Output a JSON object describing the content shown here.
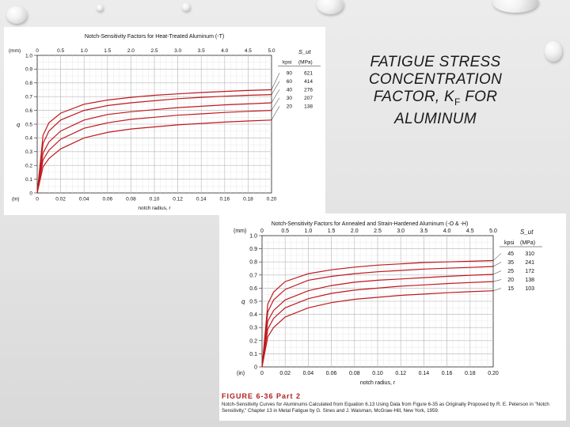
{
  "slide": {
    "title_main": "FATIGUE STRESS CONCENTRATION FACTOR, K",
    "title_sub": "F",
    "title_tail": " FOR ALUMINUM"
  },
  "chart_data": [
    {
      "type": "line",
      "title": "Notch-Sensitivity Factors for Heat-Treated Aluminum (-T)",
      "xlabel": "notch radius, r",
      "ylabel": "q",
      "x_unit_label": "(in)",
      "x2_unit_label": "(mm)",
      "x_ticks": [
        "0",
        "0.02",
        "0.04",
        "0.06",
        "0.08",
        "0.10",
        "0.12",
        "0.14",
        "0.16",
        "0.18",
        "0.20"
      ],
      "x2_ticks": [
        "0",
        "0.5",
        "1.0",
        "1.5",
        "2.0",
        "2.5",
        "3.0",
        "3.5",
        "4.0",
        "4.5",
        "5.0"
      ],
      "y_ticks": [
        "0",
        "0.1",
        "0.2",
        "0.3",
        "0.4",
        "0.5",
        "0.6",
        "0.7",
        "0.8",
        "0.9",
        "1.0"
      ],
      "xlim": [
        0,
        0.2
      ],
      "ylim": [
        0,
        1.0
      ],
      "grid": true,
      "legend_title": "S_ut",
      "legend_header": [
        "kpsi",
        "(MPa)"
      ],
      "series": [
        {
          "name": "90",
          "mpa": "621",
          "x": [
            0,
            0.005,
            0.01,
            0.02,
            0.04,
            0.06,
            0.08,
            0.1,
            0.12,
            0.14,
            0.16,
            0.18,
            0.2
          ],
          "values": [
            0,
            0.42,
            0.51,
            0.58,
            0.645,
            0.675,
            0.695,
            0.71,
            0.72,
            0.73,
            0.738,
            0.745,
            0.75
          ]
        },
        {
          "name": "60",
          "mpa": "414",
          "x": [
            0,
            0.005,
            0.01,
            0.02,
            0.04,
            0.06,
            0.08,
            0.1,
            0.12,
            0.14,
            0.16,
            0.18,
            0.2
          ],
          "values": [
            0,
            0.36,
            0.45,
            0.53,
            0.6,
            0.635,
            0.655,
            0.67,
            0.685,
            0.695,
            0.703,
            0.71,
            0.715
          ]
        },
        {
          "name": "40",
          "mpa": "276",
          "x": [
            0,
            0.005,
            0.01,
            0.02,
            0.04,
            0.06,
            0.08,
            0.1,
            0.12,
            0.14,
            0.16,
            0.18,
            0.2
          ],
          "values": [
            0,
            0.29,
            0.37,
            0.45,
            0.53,
            0.57,
            0.59,
            0.605,
            0.62,
            0.63,
            0.64,
            0.647,
            0.655
          ]
        },
        {
          "name": "30",
          "mpa": "207",
          "x": [
            0,
            0.005,
            0.01,
            0.02,
            0.04,
            0.06,
            0.08,
            0.1,
            0.12,
            0.14,
            0.16,
            0.18,
            0.2
          ],
          "values": [
            0,
            0.24,
            0.31,
            0.39,
            0.47,
            0.51,
            0.535,
            0.55,
            0.565,
            0.575,
            0.585,
            0.593,
            0.6
          ]
        },
        {
          "name": "20",
          "mpa": "138",
          "x": [
            0,
            0.005,
            0.01,
            0.02,
            0.04,
            0.06,
            0.08,
            0.1,
            0.12,
            0.14,
            0.16,
            0.18,
            0.2
          ],
          "values": [
            0,
            0.19,
            0.25,
            0.32,
            0.4,
            0.44,
            0.465,
            0.48,
            0.495,
            0.505,
            0.515,
            0.523,
            0.53
          ]
        }
      ]
    },
    {
      "type": "line",
      "title": "Notch-Sensitivity Factors for Annealed and Strain-Hardened Aluminum (-O & -H)",
      "xlabel": "notch radius, r",
      "ylabel": "q",
      "x_unit_label": "(in)",
      "x2_unit_label": "(mm)",
      "x_ticks": [
        "0",
        "0.02",
        "0.04",
        "0.06",
        "0.08",
        "0.10",
        "0.12",
        "0.14",
        "0.16",
        "0.18",
        "0.20"
      ],
      "x2_ticks": [
        "0",
        "0.5",
        "1.0",
        "1.5",
        "2.0",
        "2.5",
        "3.0",
        "3.5",
        "4.0",
        "4.5",
        "5.0"
      ],
      "y_ticks": [
        "0",
        "0.1",
        "0.2",
        "0.3",
        "0.4",
        "0.5",
        "0.6",
        "0.7",
        "0.8",
        "0.9",
        "1.0"
      ],
      "xlim": [
        0,
        0.2
      ],
      "ylim": [
        0,
        1.0
      ],
      "grid": true,
      "legend_title": "S_ut",
      "legend_header": [
        "kpsi",
        "(MPa)"
      ],
      "series": [
        {
          "name": "45",
          "mpa": "310",
          "x": [
            0,
            0.005,
            0.01,
            0.02,
            0.04,
            0.06,
            0.08,
            0.1,
            0.12,
            0.14,
            0.16,
            0.18,
            0.2
          ],
          "values": [
            0,
            0.48,
            0.57,
            0.65,
            0.71,
            0.74,
            0.76,
            0.775,
            0.785,
            0.795,
            0.8,
            0.805,
            0.81
          ]
        },
        {
          "name": "35",
          "mpa": "241",
          "x": [
            0,
            0.005,
            0.01,
            0.02,
            0.04,
            0.06,
            0.08,
            0.1,
            0.12,
            0.14,
            0.16,
            0.18,
            0.2
          ],
          "values": [
            0,
            0.42,
            0.51,
            0.59,
            0.66,
            0.69,
            0.71,
            0.725,
            0.735,
            0.745,
            0.752,
            0.758,
            0.765
          ]
        },
        {
          "name": "25",
          "mpa": "172",
          "x": [
            0,
            0.005,
            0.01,
            0.02,
            0.04,
            0.06,
            0.08,
            0.1,
            0.12,
            0.14,
            0.16,
            0.18,
            0.2
          ],
          "values": [
            0,
            0.35,
            0.43,
            0.51,
            0.58,
            0.62,
            0.645,
            0.66,
            0.67,
            0.68,
            0.69,
            0.698,
            0.705
          ]
        },
        {
          "name": "20",
          "mpa": "138",
          "x": [
            0,
            0.005,
            0.01,
            0.02,
            0.04,
            0.06,
            0.08,
            0.1,
            0.12,
            0.14,
            0.16,
            0.18,
            0.2
          ],
          "values": [
            0,
            0.29,
            0.37,
            0.45,
            0.52,
            0.56,
            0.585,
            0.6,
            0.615,
            0.625,
            0.635,
            0.643,
            0.65
          ]
        },
        {
          "name": "15",
          "mpa": "103",
          "x": [
            0,
            0.005,
            0.01,
            0.02,
            0.04,
            0.06,
            0.08,
            0.1,
            0.12,
            0.14,
            0.16,
            0.18,
            0.2
          ],
          "values": [
            0,
            0.23,
            0.3,
            0.38,
            0.45,
            0.49,
            0.515,
            0.53,
            0.545,
            0.555,
            0.565,
            0.573,
            0.58
          ]
        }
      ]
    }
  ],
  "figure_caption": {
    "label": "FIGURE 6-36   Part 2",
    "text": "Notch-Sensitivity Curves for Aluminums Calculated from Equation 6.13 Using Data from Figure 6-35 as Originally Proposed by R. E. Peterson in \"Notch Sensitivity,\" Chapter 13 in Metal Fatigue by G. Sines and J. Waisman, McGraw-Hill, New York, 1959."
  }
}
